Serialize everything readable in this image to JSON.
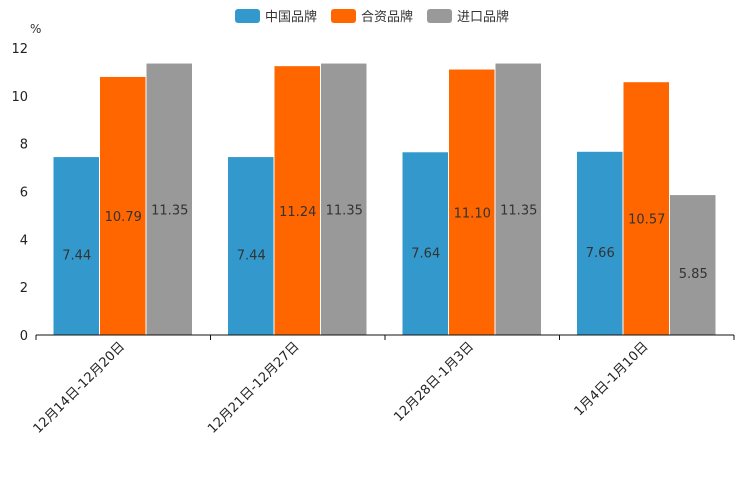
{
  "chart_data": {
    "type": "bar",
    "title": "",
    "unit": "%",
    "xlabel": "",
    "ylabel": "",
    "ylim": [
      0,
      12
    ],
    "yticks": [
      0,
      2,
      4,
      6,
      8,
      10,
      12
    ],
    "categories": [
      "12月14日-12月20日",
      "12月21日-12月27日",
      "12月28日-1月3日",
      "1月4日-1月10日"
    ],
    "series": [
      {
        "name": "中国品牌",
        "color": "#3399cc",
        "values": [
          7.44,
          7.44,
          7.64,
          7.66
        ],
        "labels": [
          "7.44",
          "7.44",
          "7.64",
          "7.66"
        ]
      },
      {
        "name": "合资品牌",
        "color": "#ff6600",
        "values": [
          10.79,
          11.24,
          11.1,
          10.57
        ],
        "labels": [
          "10.79",
          "11.24",
          "11.10",
          "10.57"
        ]
      },
      {
        "name": "进口品牌",
        "color": "#999999",
        "values": [
          11.35,
          11.35,
          11.35,
          5.85
        ],
        "labels": [
          "11.35",
          "11.35",
          "11.35",
          "5.85"
        ]
      }
    ],
    "legend_position": "top-center",
    "grid": false
  }
}
